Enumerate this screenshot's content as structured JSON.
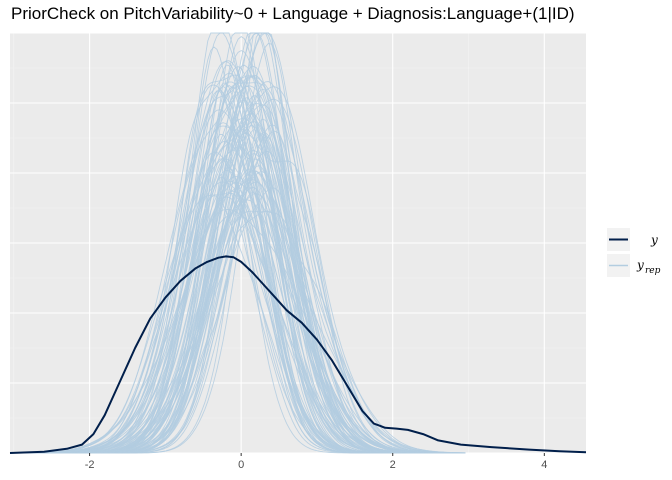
{
  "chart_data": {
    "type": "line",
    "title": "PriorCheck on PitchVariability~0 + Language + Diagnosis:Language+(1|ID)",
    "xlabel": "",
    "ylabel": "",
    "xlim": [
      -3.05,
      4.55
    ],
    "ylim": [
      0,
      1
    ],
    "x_ticks": [
      -2,
      0,
      2,
      4
    ],
    "x_tick_labels": [
      "-2",
      "0",
      "2",
      "4"
    ],
    "grid": true,
    "legend_position": "right",
    "colors": {
      "y": "#011f4b",
      "yrep": "#b3cde0",
      "panel_bg": "#ebebeb",
      "grid_major": "#ffffff",
      "grid_minor": "#f4f4f4",
      "legend_key_bg": "#f2f2f2"
    },
    "series": [
      {
        "name": "y",
        "legend_label": "y",
        "x": [
          -3.05,
          -2.6,
          -2.3,
          -2.1,
          -1.95,
          -1.8,
          -1.6,
          -1.4,
          -1.2,
          -1.0,
          -0.8,
          -0.6,
          -0.45,
          -0.3,
          -0.2,
          -0.1,
          0.0,
          0.15,
          0.3,
          0.45,
          0.6,
          0.8,
          1.0,
          1.2,
          1.4,
          1.6,
          1.75,
          1.9,
          2.05,
          2.2,
          2.4,
          2.6,
          2.9,
          3.3,
          3.8,
          4.2,
          4.55
        ],
        "y": [
          0.0,
          0.003,
          0.01,
          0.02,
          0.045,
          0.09,
          0.17,
          0.25,
          0.32,
          0.37,
          0.41,
          0.44,
          0.455,
          0.465,
          0.468,
          0.466,
          0.455,
          0.43,
          0.4,
          0.37,
          0.34,
          0.31,
          0.27,
          0.22,
          0.16,
          0.1,
          0.07,
          0.06,
          0.058,
          0.055,
          0.045,
          0.03,
          0.02,
          0.014,
          0.008,
          0.004,
          0.002
        ]
      },
      {
        "name": "yrep",
        "legend_label": "y",
        "legend_sub": "rep",
        "draws": 100,
        "typical_center_range": [
          -0.3,
          0.35
        ],
        "typical_sd_range": [
          0.4,
          0.72
        ],
        "typical_peak_range": [
          0.58,
          1.0
        ]
      }
    ]
  }
}
